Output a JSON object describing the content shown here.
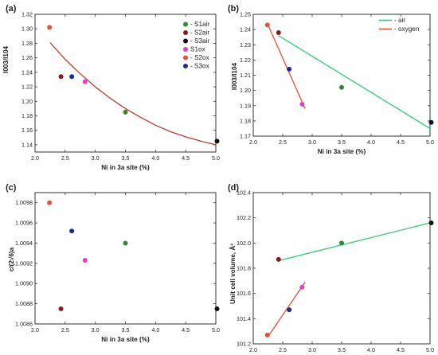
{
  "chart_data": [
    {
      "panel": "(a)",
      "type": "scatter",
      "xlabel": "Ni in 3a site (%)",
      "ylabel": "I003/I104",
      "xlim": [
        2.0,
        5.0
      ],
      "ylim": [
        1.13,
        1.32
      ],
      "xticks": [
        "2.0",
        "2.5",
        "3.0",
        "3.5",
        "4.0",
        "4.5",
        "5.0"
      ],
      "yticks": [
        "1.14",
        "1.16",
        "1.18",
        "1.20",
        "1.22",
        "1.24",
        "1.26",
        "1.28",
        "1.30",
        "1.32"
      ],
      "legend_position": "top-right",
      "series": [
        {
          "name": "- S1air",
          "color": "#2e8b2e",
          "points": [
            {
              "x": 3.5,
              "y": 1.185
            }
          ]
        },
        {
          "name": "- S2air",
          "color": "#8b1a1a",
          "points": [
            {
              "x": 2.43,
              "y": 1.234
            }
          ]
        },
        {
          "name": "- S3air",
          "color": "#111111",
          "points": [
            {
              "x": 5.02,
              "y": 1.145
            }
          ]
        },
        {
          "name": "S1ox",
          "color": "#e040c8",
          "points": [
            {
              "x": 2.83,
              "y": 1.227
            }
          ]
        },
        {
          "name": "- S2ox",
          "color": "#e0533c",
          "points": [
            {
              "x": 2.24,
              "y": 1.302
            }
          ]
        },
        {
          "name": "- S3ox",
          "color": "#1f2a8c",
          "points": [
            {
              "x": 2.61,
              "y": 1.234
            }
          ]
        }
      ],
      "fit_curve": {
        "color": "#c0392b",
        "points": [
          [
            2.25,
            1.281
          ],
          [
            2.5,
            1.258
          ],
          [
            2.75,
            1.238
          ],
          [
            3.0,
            1.22
          ],
          [
            3.25,
            1.204
          ],
          [
            3.5,
            1.19
          ],
          [
            3.75,
            1.178
          ],
          [
            4.0,
            1.167
          ],
          [
            4.25,
            1.158
          ],
          [
            4.5,
            1.151
          ],
          [
            4.75,
            1.145
          ],
          [
            5.0,
            1.14
          ]
        ]
      }
    },
    {
      "panel": "(b)",
      "type": "scatter",
      "xlabel": "Ni in 3a site (%)",
      "ylabel": "I003/I104",
      "xlim": [
        2.0,
        5.0
      ],
      "ylim": [
        1.17,
        1.25
      ],
      "xticks": [
        "2.0",
        "2.5",
        "3.0",
        "3.5",
        "4.0",
        "4.5",
        "5.0"
      ],
      "yticks": [
        "1.17",
        "1.18",
        "1.19",
        "1.20",
        "1.21",
        "1.22",
        "1.23",
        "1.24",
        "1.25"
      ],
      "legend_position": "top-right",
      "legend": [
        {
          "name": "- air",
          "color": "#2ecc71"
        },
        {
          "name": "- oxygen",
          "color": "#e74c3c"
        }
      ],
      "points": [
        {
          "x": 2.24,
          "y": 1.243,
          "color": "#e0533c"
        },
        {
          "x": 2.43,
          "y": 1.238,
          "color": "#8b1a1a"
        },
        {
          "x": 2.61,
          "y": 1.214,
          "color": "#1f2a8c"
        },
        {
          "x": 2.83,
          "y": 1.191,
          "color": "#e040c8"
        },
        {
          "x": 3.5,
          "y": 1.202,
          "color": "#2e8b2e"
        },
        {
          "x": 5.02,
          "y": 1.179,
          "color": "#111111"
        }
      ],
      "lines": [
        {
          "color": "#2ecc71",
          "points": [
            [
              2.43,
              1.236
            ],
            [
              5.0,
              1.175
            ]
          ]
        },
        {
          "color": "#e74c3c",
          "points": [
            [
              2.24,
              1.244
            ],
            [
              2.88,
              1.188
            ]
          ]
        }
      ]
    },
    {
      "panel": "(c)",
      "type": "scatter",
      "xlabel": "Ni in 3a site (%)",
      "ylabel": "c/(2√6)a",
      "xlim": [
        2.0,
        5.0
      ],
      "ylim": [
        1.0086,
        1.0099
      ],
      "xticks": [
        "2.0",
        "2.5",
        "3.0",
        "3.5",
        "4.0",
        "4.5",
        "5.0"
      ],
      "yticks": [
        "1.0086",
        "1.0088",
        "1.0090",
        "1.0092",
        "1.0094",
        "1.0096",
        "1.0098"
      ],
      "points": [
        {
          "x": 2.24,
          "y": 1.0098,
          "color": "#e0533c"
        },
        {
          "x": 2.43,
          "y": 1.00875,
          "color": "#8b1a1a"
        },
        {
          "x": 2.61,
          "y": 1.00952,
          "color": "#1f2a8c"
        },
        {
          "x": 2.83,
          "y": 1.00923,
          "color": "#e040c8"
        },
        {
          "x": 3.5,
          "y": 1.0094,
          "color": "#2e8b2e"
        },
        {
          "x": 5.02,
          "y": 1.00875,
          "color": "#111111"
        }
      ]
    },
    {
      "panel": "(d)",
      "type": "scatter",
      "xlabel": "Ni in 3a site (%)",
      "ylabel": "Unit cell volume, Å³",
      "xlim": [
        2.0,
        5.0
      ],
      "ylim": [
        101.2,
        102.4
      ],
      "xticks": [
        "2.0",
        "2.5",
        "3.0",
        "3.5",
        "4.0",
        "4.5",
        "5.0"
      ],
      "yticks": [
        "101.2",
        "101.4",
        "101.6",
        "101.8",
        "102.0",
        "102.2",
        "102.4"
      ],
      "points": [
        {
          "x": 2.24,
          "y": 101.27,
          "color": "#e0533c"
        },
        {
          "x": 2.43,
          "y": 101.87,
          "color": "#8b1a1a"
        },
        {
          "x": 2.61,
          "y": 101.47,
          "color": "#1f2a8c"
        },
        {
          "x": 2.83,
          "y": 101.65,
          "color": "#e040c8"
        },
        {
          "x": 3.5,
          "y": 102.0,
          "color": "#2e8b2e"
        },
        {
          "x": 5.02,
          "y": 102.16,
          "color": "#111111"
        }
      ],
      "lines": [
        {
          "color": "#2ecc71",
          "points": [
            [
              2.43,
              101.86
            ],
            [
              5.0,
              102.16
            ]
          ]
        },
        {
          "color": "#e74c3c",
          "points": [
            [
              2.24,
              101.25
            ],
            [
              2.88,
              101.69
            ]
          ]
        }
      ]
    }
  ]
}
